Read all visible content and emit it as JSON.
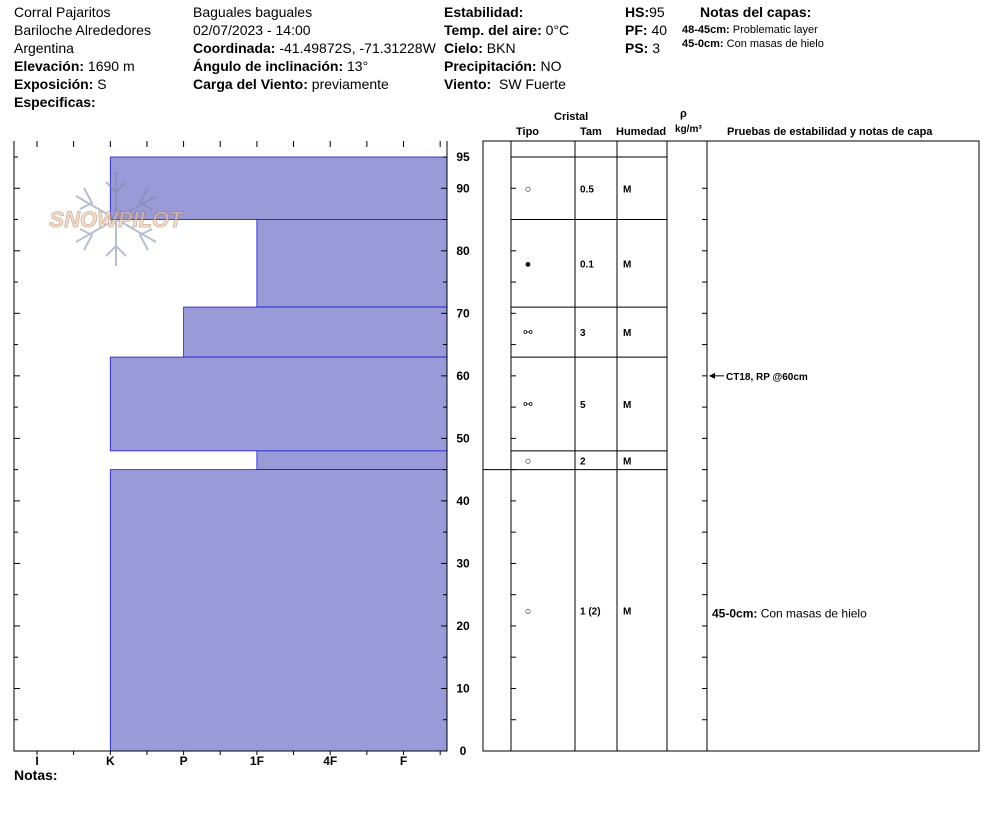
{
  "header": {
    "col1": {
      "location": "Corral Pajaritos",
      "area": "Bariloche Alrededores",
      "country": "Argentina",
      "elevation_label": "Elevación:",
      "elevation": "1690 m",
      "exposure_label": "Exposición:",
      "exposure": "S",
      "specifics_label": "Especificas:"
    },
    "col2": {
      "title": "Baguales baguales",
      "datetime": "02/07/2023 - 14:00",
      "coord_label": "Coordinada:",
      "coord": "-41.49872S, -71.31228W",
      "incline_label": "Ángulo de inclinación:",
      "incline": "13°",
      "wind_load_label": "Carga del Viento:",
      "wind_load": "previamente"
    },
    "col3": {
      "stability_label": "Estabilidad:",
      "air_temp_label": "Temp. del aire:",
      "air_temp": "0°C",
      "sky_label": "Cielo:",
      "sky": "BKN",
      "precip_label": "Precipitación:",
      "precip": "NO",
      "wind_label": "Viento:",
      "wind": "SW Fuerte"
    },
    "col4": {
      "hs_label": "HS:",
      "hs": "95",
      "pf_label": "PF:",
      "pf": "40",
      "ps_label": "PS:",
      "ps": "3"
    },
    "layer_notes": {
      "title": "Notas del capas:",
      "items": [
        {
          "range": "48-45cm:",
          "text": "Problematic layer"
        },
        {
          "range": "45-0cm:",
          "text": "Con masas de hielo"
        }
      ]
    }
  },
  "watermark": "SNOWPILOT",
  "table_headers": {
    "crystal": "Cristal",
    "type": "Tipo",
    "size": "Tam",
    "moisture": "Humedad",
    "rho": "ρ",
    "density_unit": "kg/m³",
    "tests": "Pruebas de estabilidad y notas de capa"
  },
  "footer": {
    "notes_label": "Notas:"
  },
  "colors": {
    "hardness_fill": "#9a9ad8",
    "hardness_edge": "#1a1acc"
  },
  "chart_data": {
    "type": "bar",
    "orientation": "horizontal",
    "total_depth_cm": 95,
    "y_axis_ticks": [
      0,
      10,
      20,
      30,
      40,
      50,
      60,
      70,
      80,
      90,
      95
    ],
    "hardness_scale": [
      "I",
      "K",
      "P",
      "1F",
      "4F",
      "F"
    ],
    "layers": [
      {
        "top": 95,
        "bottom": 85,
        "hardness": "K",
        "crystal_symbol": "○",
        "size": "0.5",
        "moisture": "M"
      },
      {
        "top": 85,
        "bottom": 71,
        "hardness": "1F",
        "crystal_symbol": "●",
        "size": "0.1",
        "moisture": "M"
      },
      {
        "top": 71,
        "bottom": 63,
        "hardness": "P",
        "crystal_symbol": "⚯",
        "size": "3",
        "moisture": "M"
      },
      {
        "top": 63,
        "bottom": 48,
        "hardness": "K",
        "crystal_symbol": "⚯",
        "size": "5",
        "moisture": "M"
      },
      {
        "top": 48,
        "bottom": 45,
        "hardness": "1F",
        "crystal_symbol": "○",
        "size": "2",
        "moisture": "M"
      },
      {
        "top": 45,
        "bottom": 0,
        "hardness": "K",
        "crystal_symbol": "○",
        "size": "1 (2)",
        "moisture": "M"
      }
    ],
    "stability_tests": [
      {
        "depth": 60,
        "text": "CT18, RP @60cm"
      }
    ],
    "layer_comments": [
      {
        "depth": 22,
        "range": "45-0cm:",
        "text": "Con masas de hielo"
      }
    ]
  }
}
